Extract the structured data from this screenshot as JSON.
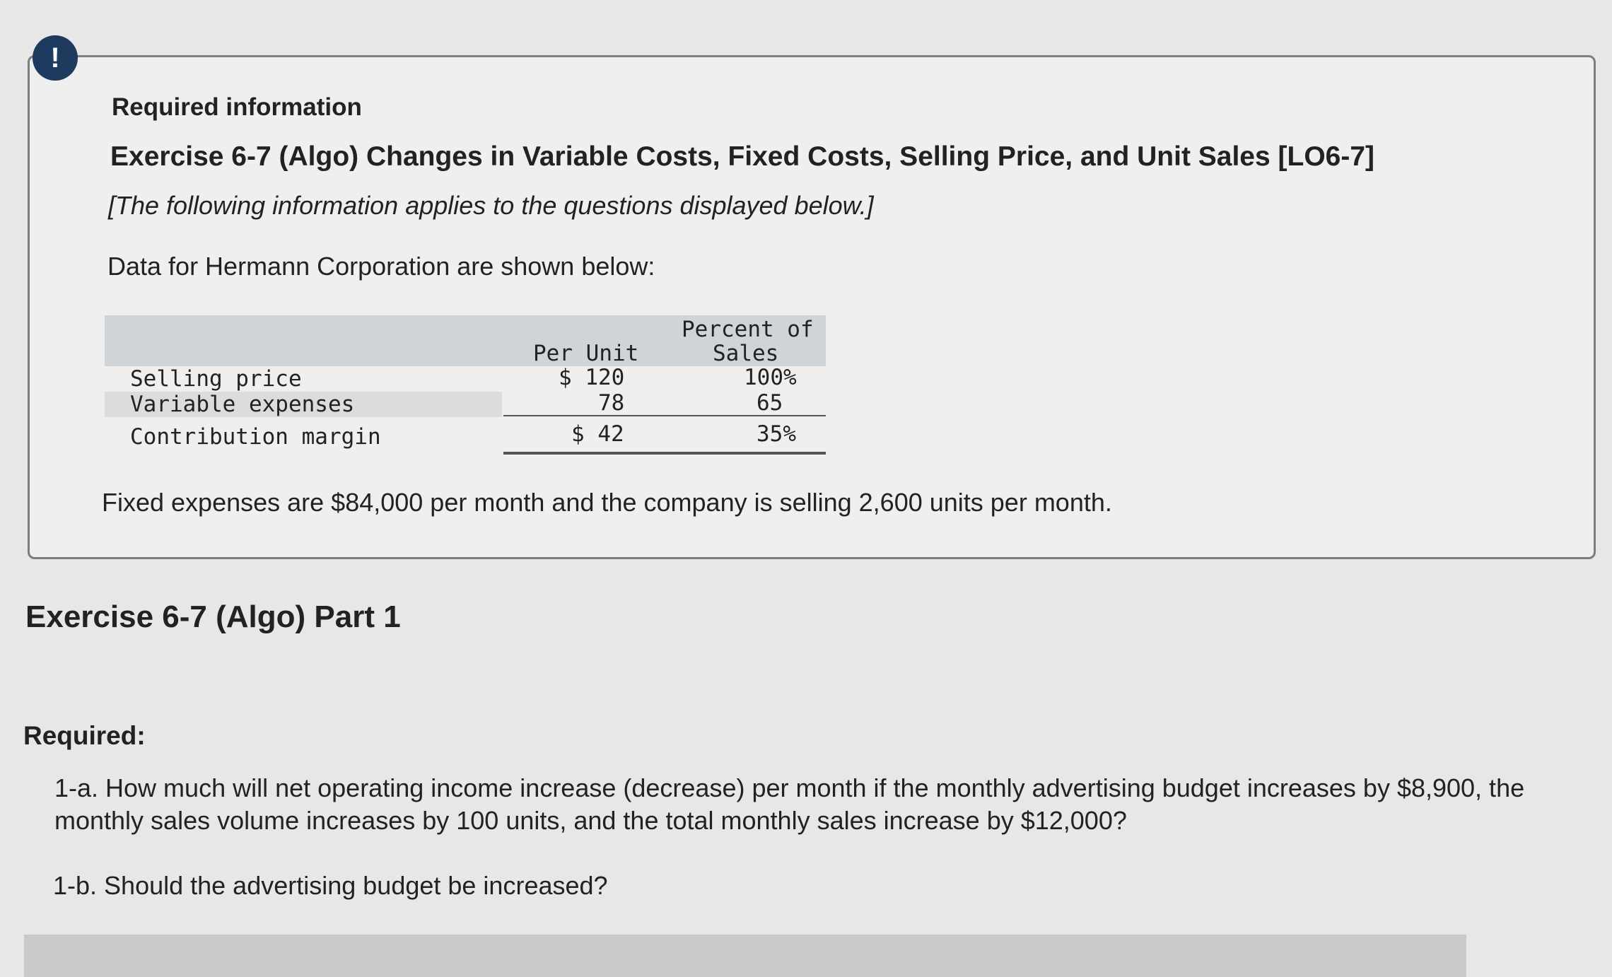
{
  "alert_icon": "!",
  "info": {
    "heading": "Required information",
    "exercise_title": "Exercise 6-7 (Algo) Changes in Variable Costs, Fixed Costs, Selling Price, and Unit Sales [LO6-7]",
    "applies_note": "[The following information applies to the questions displayed below.]",
    "intro": "Data for Hermann Corporation are shown below:",
    "table": {
      "headers": {
        "per_unit": "Per Unit",
        "percent_line1": "Percent of",
        "percent_line2": "Sales"
      },
      "rows": [
        {
          "label": "Selling price",
          "per_unit": "$ 120",
          "percent": "100%"
        },
        {
          "label": "Variable expenses",
          "per_unit": "78",
          "percent": "65"
        },
        {
          "label": "Contribution margin",
          "per_unit": "$ 42",
          "percent": "35%"
        }
      ]
    },
    "fixed_note": "Fixed expenses are $84,000 per month and the company is selling 2,600 units per month."
  },
  "part": {
    "title": "Exercise 6-7 (Algo) Part 1",
    "required_label": "Required:",
    "q1a": "1-a. How much will net operating income increase (decrease) per month if the monthly advertising budget increases by $8,900, the monthly sales volume increases by 100 units, and the total monthly sales increase by $12,000?",
    "q1b": "1-b. Should the advertising budget be increased?"
  }
}
